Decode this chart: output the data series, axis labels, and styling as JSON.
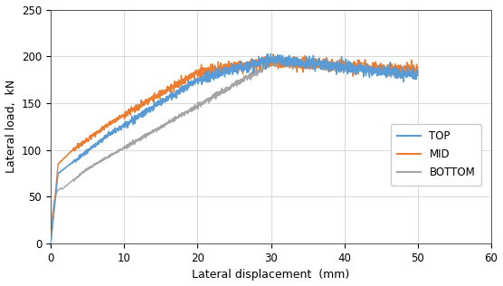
{
  "xlabel": "Lateral displacement  (mm)",
  "ylabel": "Lateral load,  kN",
  "xlim": [
    0,
    60
  ],
  "ylim": [
    0,
    250
  ],
  "xticks": [
    0,
    10,
    20,
    30,
    40,
    50,
    60
  ],
  "yticks": [
    0,
    50,
    100,
    150,
    200,
    250
  ],
  "legend_labels": [
    "TOP",
    "MID",
    "BOTTOM"
  ],
  "colors": {
    "TOP": "#5b9bd5",
    "MID": "#ed7d31",
    "BOTTOM": "#a5a5a5"
  },
  "line_width": 1.0,
  "background_color": "#ffffff",
  "grid_color": "#d3d3d3"
}
